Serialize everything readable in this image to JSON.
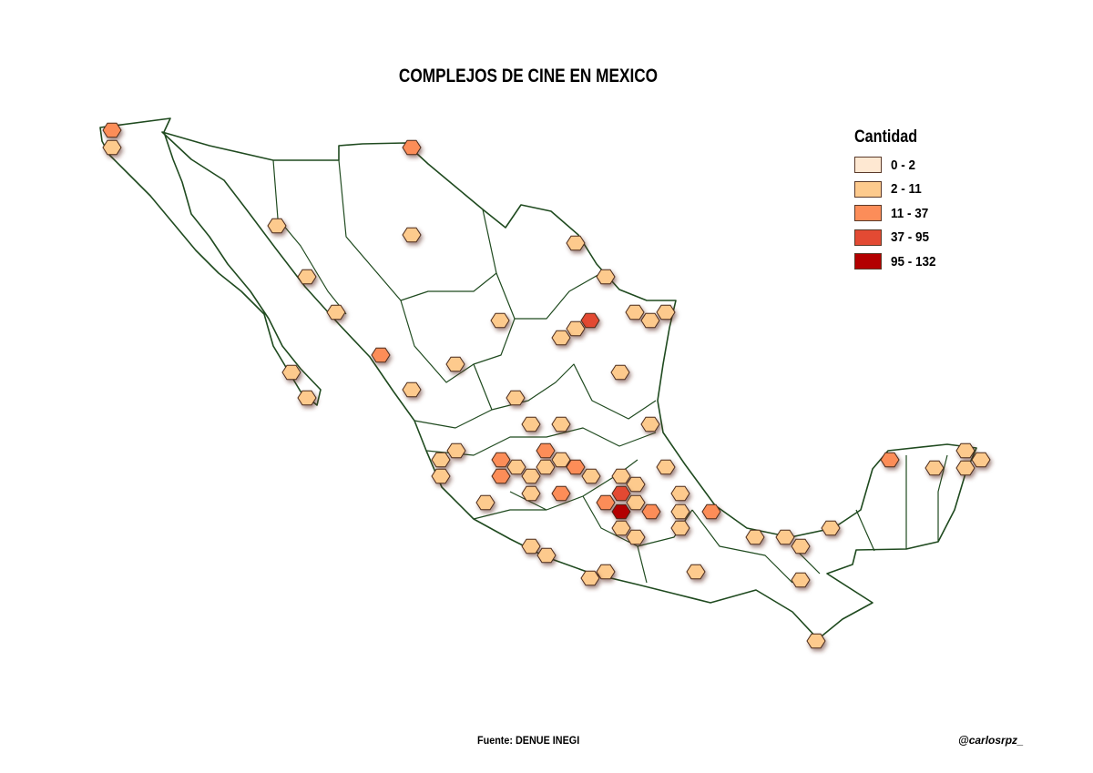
{
  "title": "COMPLEJOS DE CINE EN MEXICO",
  "legend": {
    "title": "Cantidad",
    "classes": [
      {
        "label": "0 - 2",
        "color": "#fee8d2"
      },
      {
        "label": "2 - 11",
        "color": "#fdca8d"
      },
      {
        "label": "11 - 37",
        "color": "#fc8d59"
      },
      {
        "label": "37 - 95",
        "color": "#e34a33"
      },
      {
        "label": "95 - 132",
        "color": "#b30000"
      }
    ]
  },
  "hex_bin_classes": [
    3,
    2,
    3,
    2,
    2,
    2,
    2,
    2,
    2,
    2,
    4,
    2,
    2,
    2,
    2,
    2,
    3,
    2,
    2,
    2,
    2,
    2,
    2,
    2,
    2,
    2,
    2,
    2,
    2,
    3,
    3,
    2,
    2,
    2,
    3,
    2,
    2,
    3,
    2,
    3,
    2,
    2,
    2,
    4,
    3,
    2,
    5,
    3,
    2,
    2,
    2,
    2,
    2,
    2,
    3,
    2,
    2,
    2,
    2,
    2,
    2,
    2,
    2,
    2,
    2,
    2,
    3,
    2,
    2,
    2,
    2
  ],
  "colors": {
    "border": "#1f4a1f",
    "hex_stroke": "#4a2a1a"
  },
  "source": "Fuente: DENUE INEGI",
  "credit": "@carlosrpz_"
}
